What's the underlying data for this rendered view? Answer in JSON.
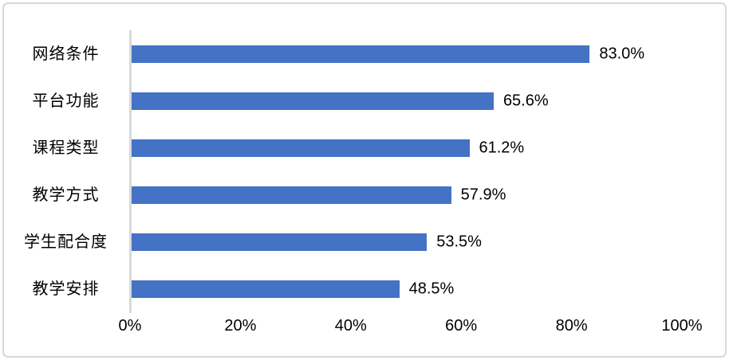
{
  "chart_data": {
    "type": "bar",
    "orientation": "horizontal",
    "title": "",
    "categories": [
      "网络条件",
      "平台功能",
      "课程类型",
      "教学方式",
      "学生配合度",
      "教学安排"
    ],
    "values": [
      83.0,
      65.6,
      61.2,
      57.9,
      53.5,
      48.5
    ],
    "data_labels": [
      "83.0%",
      "65.6%",
      "61.2%",
      "57.9%",
      "53.5%",
      "48.5%"
    ],
    "x_axis": {
      "min": 0,
      "max": 100,
      "tick_labels": [
        "0%",
        "20%",
        "40%",
        "60%",
        "80%",
        "100%"
      ]
    },
    "grid": false,
    "legend": "none",
    "colors": {
      "bar": "#4472c4",
      "axis_line": "#d9d9d9",
      "frame_border": "#d9d9d9",
      "text": "#000000",
      "background": "#ffffff"
    }
  }
}
